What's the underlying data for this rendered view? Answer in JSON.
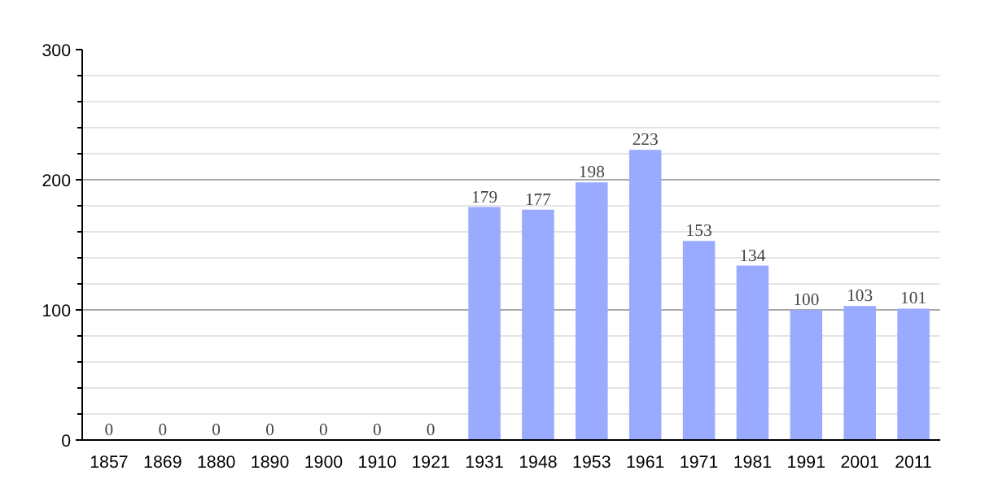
{
  "chart_data": {
    "type": "bar",
    "categories": [
      "1857",
      "1869",
      "1880",
      "1890",
      "1900",
      "1910",
      "1921",
      "1931",
      "1948",
      "1953",
      "1961",
      "1971",
      "1981",
      "1991",
      "2001",
      "2011"
    ],
    "values": [
      0,
      0,
      0,
      0,
      0,
      0,
      0,
      179,
      177,
      198,
      223,
      153,
      134,
      100,
      103,
      101
    ],
    "color": "#99aaff",
    "ylim": [
      0,
      300
    ],
    "yticks": [
      0,
      100,
      200,
      300
    ],
    "grid": "y",
    "data_labels": true
  }
}
